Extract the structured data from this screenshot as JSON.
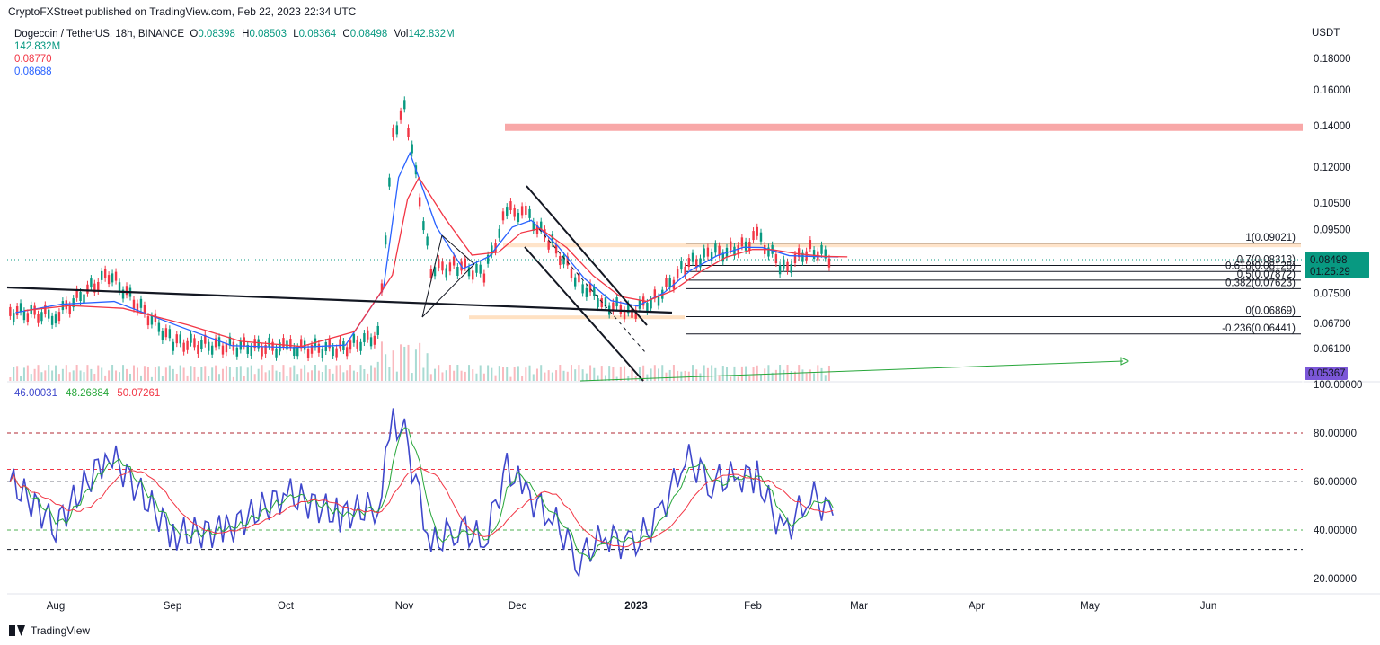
{
  "header": {
    "published": "CryptoFXStreet published on TradingView.com, Feb 22, 2023 22:34 UTC"
  },
  "legend": {
    "symbol": "Dogecoin / TetherUS, 18h, BINANCE",
    "o_label": "O",
    "o": "0.08398",
    "h_label": "H",
    "h": "0.08503",
    "l_label": "L",
    "l": "0.08364",
    "c_label": "C",
    "c": "0.08498",
    "vol_label": "Vol",
    "vol": "142.832M",
    "vol_line2": "142.832M",
    "ma_slow": "0.08770",
    "ma_fast": "0.08688"
  },
  "rsi_legend": {
    "v1": "46.00031",
    "v2": "48.26884",
    "v3": "50.07261"
  },
  "footer": {
    "brand": "TradingView"
  },
  "colors": {
    "up": "#089981",
    "down": "#f23645",
    "ma_fast": "#2962ff",
    "ma_slow": "#f23645",
    "rsi": "#3f48cc",
    "rsi_ma": "#26a639",
    "zone": "#f8a8a8",
    "fib_zone": "#ffd9b3",
    "price_tag": "#089981",
    "vol_tag": "#7b57d8"
  },
  "chart_data": [
    {
      "type": "candlestick",
      "title": "Dogecoin / TetherUS, 18h, BINANCE",
      "y_axis_unit": "USDT",
      "y_scale": "log",
      "y_ticks": [
        "0.18000",
        "0.16000",
        "0.14000",
        "0.12000",
        "0.10500",
        "0.09500",
        "0.07500",
        "0.06700",
        "0.06100"
      ],
      "x_ticks": [
        "Aug",
        "Sep",
        "Oct",
        "Nov",
        "Dec",
        "2023",
        "Feb",
        "Mar",
        "Apr",
        "May",
        "Jun"
      ],
      "price_tag": "0.08498",
      "countdown": "01:25:29",
      "volume_tag": "0.05367",
      "series": [
        {
          "name": "close",
          "x": [
            "Jul 20",
            "Aug 1",
            "Aug 15",
            "Sep 1",
            "Sep 15",
            "Oct 1",
            "Oct 15",
            "Oct 25",
            "Oct 29",
            "Nov 1",
            "Nov 8",
            "Nov 15",
            "Nov 22",
            "Nov 28",
            "Dec 3",
            "Dec 10",
            "Dec 17",
            "Dec 24",
            "Dec 31",
            "Jan 7",
            "Jan 14",
            "Jan 21",
            "Jan 28",
            "Feb 2",
            "Feb 9",
            "Feb 16",
            "Feb 22"
          ],
          "values": [
            0.07,
            0.069,
            0.0805,
            0.0625,
            0.0615,
            0.0612,
            0.061,
            0.064,
            0.135,
            0.152,
            0.082,
            0.083,
            0.0805,
            0.102,
            0.101,
            0.09,
            0.078,
            0.072,
            0.07,
            0.074,
            0.083,
            0.087,
            0.088,
            0.093,
            0.082,
            0.0885,
            0.08498
          ]
        }
      ],
      "levels": [
        {
          "label": "1(0.09021)",
          "value": 0.09021
        },
        {
          "label": "0.7(0.08313)",
          "value": 0.08313
        },
        {
          "label": "0.618(0.08128)",
          "value": 0.08128
        },
        {
          "label": "0.5(0.07872)",
          "value": 0.07872
        },
        {
          "label": "0.382(0.07623)",
          "value": 0.07623
        },
        {
          "label": "0(0.06869)",
          "value": 0.06869
        },
        {
          "label": "-0.236(0.06441)",
          "value": 0.06441
        }
      ],
      "resistance_zone": [
        0.138,
        0.141
      ]
    },
    {
      "type": "line",
      "title": "RSI",
      "y_ticks": [
        "100.00000",
        "80.00000",
        "60.00000",
        "40.00000",
        "20.00000"
      ],
      "levels": [
        80,
        65,
        60,
        40,
        32
      ],
      "series": [
        {
          "x": [
            "Jul 20",
            "Aug 1",
            "Aug 15",
            "Sep 1",
            "Sep 15",
            "Oct 1",
            "Oct 15",
            "Oct 25",
            "Oct 29",
            "Nov 1",
            "Nov 8",
            "Nov 15",
            "Nov 22",
            "Nov 28",
            "Dec 3",
            "Dec 10",
            "Dec 17",
            "Dec 24",
            "Dec 31",
            "Jan 7",
            "Jan 14",
            "Jan 21",
            "Jan 28",
            "Feb 2",
            "Feb 9",
            "Feb 16",
            "Feb 22"
          ],
          "values": [
            60,
            42,
            72,
            38,
            40,
            55,
            46,
            50,
            85,
            80,
            33,
            42,
            35,
            66,
            55,
            45,
            28,
            38,
            33,
            45,
            70,
            60,
            62,
            62,
            38,
            55,
            46
          ]
        }
      ]
    }
  ]
}
